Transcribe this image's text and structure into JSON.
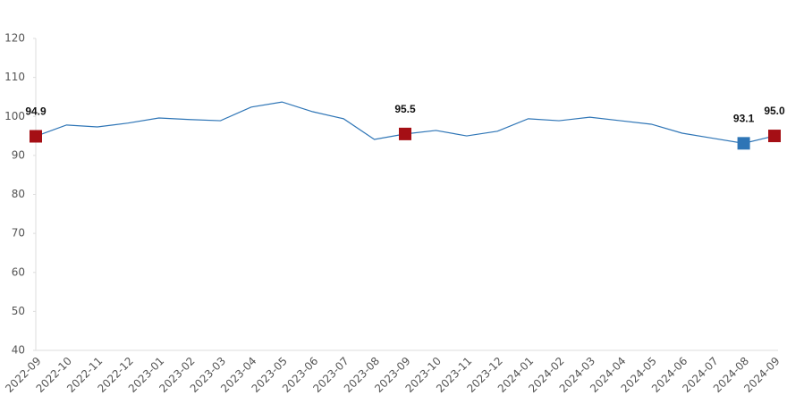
{
  "chart_data": {
    "type": "line",
    "categories": [
      "2022-09",
      "2022-10",
      "2022-11",
      "2022-12",
      "2023-01",
      "2023-02",
      "2023-03",
      "2023-04",
      "2023-05",
      "2023-06",
      "2023-07",
      "2023-08",
      "2023-09",
      "2023-10",
      "2023-11",
      "2023-12",
      "2024-01",
      "2024-02",
      "2024-03",
      "2024-04",
      "2024-05",
      "2024-06",
      "2024-07",
      "2024-08",
      "2024-09"
    ],
    "values": [
      94.9,
      97.8,
      97.3,
      98.3,
      99.6,
      99.2,
      98.9,
      102.4,
      103.7,
      101.2,
      99.4,
      94.1,
      95.5,
      96.4,
      95.0,
      96.2,
      99.4,
      98.9,
      99.8,
      98.9,
      98.0,
      95.7,
      94.4,
      93.1,
      95.0
    ],
    "value_labels": [
      "94.9",
      null,
      null,
      null,
      null,
      null,
      null,
      null,
      null,
      null,
      null,
      null,
      "95.5",
      null,
      null,
      null,
      null,
      null,
      null,
      null,
      null,
      null,
      null,
      "93.1",
      "95.0"
    ],
    "marker_colors": [
      "#a50f15",
      null,
      null,
      null,
      null,
      null,
      null,
      null,
      null,
      null,
      null,
      null,
      "#a50f15",
      null,
      null,
      null,
      null,
      null,
      null,
      null,
      null,
      null,
      null,
      "#2e75b6",
      "#a50f15"
    ],
    "color": "#2e75b6",
    "ylim": [
      40,
      120
    ],
    "yticks": [
      40,
      50,
      60,
      70,
      80,
      90,
      100,
      110,
      120
    ],
    "grid": false
  }
}
